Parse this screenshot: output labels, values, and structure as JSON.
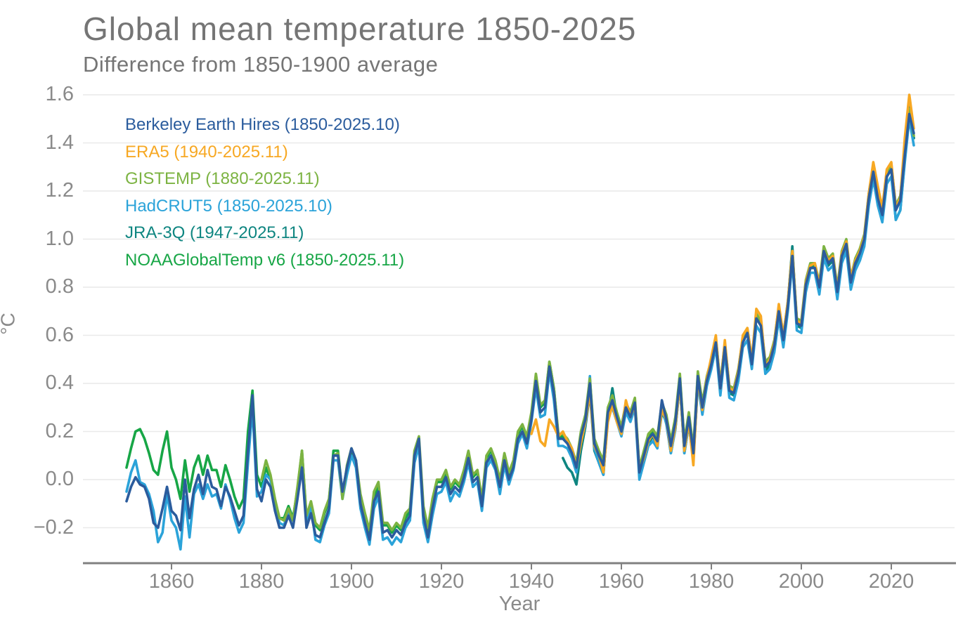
{
  "title": "Global mean temperature 1850-2025",
  "subtitle": "Difference from 1850-1900 average",
  "chart_data": {
    "type": "line",
    "title": "Global mean temperature 1850-2025",
    "subtitle": "Difference from 1850-1900 average",
    "xlabel": "Year",
    "ylabel": "°C",
    "xlim": [
      1850,
      2025
    ],
    "ylim": [
      -0.35,
      1.65
    ],
    "grid": "horizontal",
    "legend_position": "top-left",
    "xticks": [
      1860,
      1880,
      1900,
      1920,
      1940,
      1960,
      1980,
      2000,
      2020
    ],
    "xtick_labels": [
      "1860",
      "1880",
      "1900",
      "1920",
      "1940",
      "1960",
      "1980",
      "2000",
      "2020"
    ],
    "yticks": [
      1.6,
      1.4,
      1.2,
      1.0,
      0.8,
      0.6,
      0.4,
      0.2,
      0.0,
      -0.2
    ],
    "ytick_labels": [
      "1.6",
      "1.4",
      "1.2",
      "1.0",
      "0.8",
      "0.6",
      "0.4",
      "0.2",
      "0.0",
      "−0.2"
    ],
    "draw_order": [
      "noaaglobaltemp",
      "jra-3q",
      "hadcrut5",
      "gistemp",
      "era5",
      "berkeley-earth"
    ],
    "series": [
      {
        "name": "berkeley-earth",
        "label": "Berkeley Earth Hires (1850-2025.10)",
        "color": "#2b5c9d",
        "start_year": 1850,
        "values": [
          -0.09,
          -0.03,
          0.01,
          -0.02,
          -0.03,
          -0.08,
          -0.18,
          -0.2,
          -0.12,
          -0.03,
          -0.13,
          -0.15,
          -0.21,
          0.0,
          -0.16,
          -0.04,
          0.02,
          -0.06,
          0.04,
          -0.03,
          -0.04,
          -0.11,
          -0.03,
          -0.07,
          -0.13,
          -0.19,
          -0.15,
          0.12,
          0.35,
          -0.04,
          -0.09,
          0.0,
          -0.03,
          -0.13,
          -0.2,
          -0.2,
          -0.15,
          -0.2,
          -0.08,
          0.05,
          -0.2,
          -0.14,
          -0.23,
          -0.24,
          -0.18,
          -0.12,
          0.1,
          0.1,
          -0.05,
          0.05,
          0.13,
          0.08,
          -0.1,
          -0.18,
          -0.25,
          -0.09,
          -0.05,
          -0.22,
          -0.21,
          -0.24,
          -0.21,
          -0.23,
          -0.18,
          -0.15,
          0.1,
          0.17,
          -0.15,
          -0.24,
          -0.12,
          -0.03,
          -0.03,
          0.01,
          -0.06,
          -0.03,
          -0.05,
          0.01,
          0.09,
          -0.01,
          0.01,
          -0.11,
          0.07,
          0.1,
          0.05,
          -0.03,
          0.08,
          0.0,
          0.05,
          0.17,
          0.2,
          0.15,
          0.25,
          0.41,
          0.28,
          0.3,
          0.47,
          0.36,
          0.17,
          0.17,
          0.15,
          0.11,
          0.05,
          0.18,
          0.25,
          0.4,
          0.15,
          0.1,
          0.06,
          0.28,
          0.33,
          0.26,
          0.2,
          0.3,
          0.26,
          0.32,
          0.03,
          0.1,
          0.17,
          0.19,
          0.16,
          0.33,
          0.25,
          0.14,
          0.24,
          0.42,
          0.14,
          0.26,
          0.11,
          0.43,
          0.3,
          0.41,
          0.48,
          0.57,
          0.38,
          0.55,
          0.37,
          0.36,
          0.44,
          0.57,
          0.61,
          0.48,
          0.67,
          0.64,
          0.47,
          0.49,
          0.56,
          0.7,
          0.58,
          0.72,
          0.93,
          0.65,
          0.64,
          0.81,
          0.88,
          0.88,
          0.8,
          0.95,
          0.9,
          0.92,
          0.78,
          0.93,
          0.98,
          0.82,
          0.9,
          0.94,
          1.0,
          1.17,
          1.28,
          1.17,
          1.1,
          1.26,
          1.29,
          1.12,
          1.16,
          1.35,
          1.52,
          1.44
        ]
      },
      {
        "name": "era5",
        "label": "ERA5 (1940-2025.11)",
        "color": "#f7a823",
        "start_year": 1940,
        "values": [
          0.19,
          0.25,
          0.16,
          0.14,
          0.25,
          0.22,
          0.18,
          0.2,
          0.16,
          0.13,
          0.05,
          0.15,
          0.24,
          0.36,
          0.14,
          0.1,
          0.03,
          0.24,
          0.31,
          0.24,
          0.19,
          0.33,
          0.26,
          0.31,
          0.04,
          0.09,
          0.16,
          0.19,
          0.14,
          0.29,
          0.25,
          0.12,
          0.22,
          0.4,
          0.12,
          0.24,
          0.06,
          0.42,
          0.29,
          0.42,
          0.51,
          0.6,
          0.38,
          0.58,
          0.38,
          0.37,
          0.45,
          0.6,
          0.63,
          0.5,
          0.71,
          0.68,
          0.47,
          0.5,
          0.57,
          0.73,
          0.6,
          0.74,
          0.95,
          0.66,
          0.65,
          0.82,
          0.89,
          0.9,
          0.81,
          0.95,
          0.91,
          0.93,
          0.79,
          0.94,
          0.99,
          0.84,
          0.91,
          0.95,
          1.01,
          1.19,
          1.32,
          1.22,
          1.13,
          1.29,
          1.32,
          1.13,
          1.17,
          1.42,
          1.6,
          1.46
        ]
      },
      {
        "name": "gistemp",
        "label": "GISTEMP (1880-2025.11)",
        "color": "#7cb342",
        "start_year": 1880,
        "values": [
          0.0,
          0.08,
          0.02,
          -0.08,
          -0.16,
          -0.17,
          -0.12,
          -0.17,
          -0.03,
          0.12,
          -0.15,
          -0.09,
          -0.18,
          -0.2,
          -0.13,
          -0.08,
          0.1,
          0.11,
          -0.08,
          0.06,
          0.13,
          0.08,
          -0.06,
          -0.14,
          -0.21,
          -0.05,
          -0.01,
          -0.18,
          -0.18,
          -0.21,
          -0.18,
          -0.2,
          -0.14,
          -0.12,
          0.12,
          0.18,
          -0.11,
          -0.2,
          -0.08,
          0.0,
          0.0,
          0.04,
          -0.03,
          0.0,
          -0.02,
          0.04,
          0.12,
          0.02,
          0.04,
          -0.08,
          0.1,
          0.13,
          0.08,
          0.0,
          0.11,
          0.03,
          0.08,
          0.2,
          0.23,
          0.18,
          0.28,
          0.44,
          0.31,
          0.33,
          0.49,
          0.38,
          0.19,
          0.19,
          0.17,
          0.13,
          0.07,
          0.2,
          0.27,
          0.42,
          0.17,
          0.12,
          0.08,
          0.3,
          0.35,
          0.28,
          0.22,
          0.32,
          0.28,
          0.34,
          0.05,
          0.12,
          0.19,
          0.21,
          0.18,
          0.32,
          0.27,
          0.16,
          0.26,
          0.44,
          0.16,
          0.28,
          0.13,
          0.45,
          0.32,
          0.43,
          0.5,
          0.59,
          0.4,
          0.57,
          0.39,
          0.38,
          0.46,
          0.59,
          0.63,
          0.5,
          0.69,
          0.66,
          0.49,
          0.51,
          0.58,
          0.72,
          0.6,
          0.74,
          0.95,
          0.67,
          0.66,
          0.83,
          0.9,
          0.9,
          0.82,
          0.97,
          0.92,
          0.94,
          0.8,
          0.95,
          1.0,
          0.84,
          0.92,
          0.96,
          1.02,
          1.19,
          1.3,
          1.19,
          1.12,
          1.28,
          1.31,
          1.14,
          1.18,
          1.37,
          1.54,
          1.43
        ]
      },
      {
        "name": "hadcrut5",
        "label": "HadCRUT5 (1850-2025.10)",
        "color": "#2ba3d9",
        "start_year": 1850,
        "values": [
          -0.05,
          0.03,
          0.08,
          -0.01,
          -0.02,
          -0.06,
          -0.13,
          -0.26,
          -0.22,
          -0.06,
          -0.17,
          -0.2,
          -0.29,
          -0.07,
          -0.24,
          -0.06,
          -0.02,
          -0.08,
          -0.02,
          -0.07,
          -0.06,
          -0.12,
          -0.02,
          -0.08,
          -0.16,
          -0.22,
          -0.18,
          0.07,
          0.3,
          -0.07,
          -0.05,
          0.02,
          0.0,
          -0.1,
          -0.18,
          -0.19,
          -0.13,
          -0.17,
          -0.05,
          0.08,
          -0.17,
          -0.11,
          -0.25,
          -0.26,
          -0.19,
          -0.14,
          0.08,
          0.08,
          -0.08,
          0.02,
          0.1,
          0.05,
          -0.12,
          -0.2,
          -0.27,
          -0.12,
          -0.07,
          -0.25,
          -0.24,
          -0.27,
          -0.24,
          -0.26,
          -0.2,
          -0.17,
          0.07,
          0.14,
          -0.18,
          -0.26,
          -0.15,
          -0.06,
          -0.05,
          -0.01,
          -0.09,
          -0.05,
          -0.07,
          -0.01,
          0.07,
          -0.03,
          -0.01,
          -0.13,
          0.05,
          0.08,
          0.04,
          -0.06,
          0.06,
          -0.02,
          0.04,
          0.15,
          0.19,
          0.13,
          0.24,
          0.38,
          0.26,
          0.27,
          0.45,
          0.33,
          0.14,
          0.14,
          0.13,
          0.09,
          0.03,
          0.16,
          0.23,
          0.43,
          0.13,
          0.07,
          0.02,
          0.26,
          0.3,
          0.24,
          0.18,
          0.28,
          0.24,
          0.3,
          0.0,
          0.07,
          0.14,
          0.16,
          0.13,
          0.3,
          0.23,
          0.11,
          0.21,
          0.4,
          0.11,
          0.23,
          0.08,
          0.4,
          0.27,
          0.39,
          0.46,
          0.55,
          0.35,
          0.53,
          0.34,
          0.33,
          0.41,
          0.55,
          0.58,
          0.46,
          0.64,
          0.61,
          0.44,
          0.46,
          0.53,
          0.67,
          0.55,
          0.7,
          0.91,
          0.62,
          0.61,
          0.78,
          0.86,
          0.86,
          0.77,
          0.92,
          0.87,
          0.89,
          0.75,
          0.9,
          0.95,
          0.79,
          0.87,
          0.91,
          0.97,
          1.14,
          1.25,
          1.14,
          1.07,
          1.23,
          1.26,
          1.08,
          1.12,
          1.32,
          1.5,
          1.39
        ]
      },
      {
        "name": "jra-3q",
        "label": "JRA-3Q (1947-2025.11)",
        "color": "#0e8580",
        "start_year": 1947,
        "values": [
          0.09,
          0.05,
          0.03,
          -0.02,
          0.12,
          0.22,
          0.36,
          0.12,
          0.07,
          0.02,
          0.26,
          0.38,
          0.26,
          0.19,
          0.3,
          0.25,
          0.31,
          0.02,
          0.08,
          0.15,
          0.18,
          0.14,
          0.28,
          0.24,
          0.11,
          0.21,
          0.4,
          0.11,
          0.23,
          0.08,
          0.41,
          0.28,
          0.4,
          0.48,
          0.57,
          0.36,
          0.55,
          0.36,
          0.35,
          0.43,
          0.58,
          0.61,
          0.48,
          0.68,
          0.65,
          0.45,
          0.48,
          0.55,
          0.71,
          0.58,
          0.73,
          0.97,
          0.64,
          0.63,
          0.8,
          0.88,
          0.88,
          0.79,
          0.93,
          0.89,
          0.91,
          0.76,
          0.92,
          0.97,
          0.81,
          0.89,
          0.93,
          0.99,
          1.17,
          1.29,
          1.18,
          1.1,
          1.26,
          1.29,
          1.08,
          1.12,
          1.33,
          1.56,
          1.42
        ]
      },
      {
        "name": "noaaglobaltemp",
        "label": "NOAAGlobalTemp v6 (1850-2025.11)",
        "color": "#17a646",
        "start_year": 1850,
        "values": [
          0.05,
          0.13,
          0.2,
          0.21,
          0.17,
          0.11,
          0.04,
          0.02,
          0.12,
          0.2,
          0.05,
          0.0,
          -0.08,
          0.08,
          -0.05,
          0.05,
          0.1,
          0.02,
          0.1,
          0.04,
          0.04,
          -0.03,
          0.06,
          0.0,
          -0.07,
          -0.12,
          -0.08,
          0.2,
          0.37,
          0.02,
          -0.03,
          0.05,
          0.0,
          -0.09,
          -0.16,
          -0.16,
          -0.11,
          -0.16,
          -0.04,
          0.12,
          -0.16,
          -0.1,
          -0.19,
          -0.21,
          -0.14,
          -0.09,
          0.12,
          0.12,
          -0.06,
          0.05,
          0.12,
          0.07,
          -0.08,
          -0.15,
          -0.22,
          -0.07,
          -0.03,
          -0.19,
          -0.19,
          -0.22,
          -0.19,
          -0.21,
          -0.16,
          -0.13,
          0.1,
          0.16,
          -0.13,
          -0.22,
          -0.1,
          -0.01,
          -0.01,
          0.03,
          -0.04,
          -0.01,
          -0.03,
          0.03,
          0.11,
          0.01,
          0.03,
          -0.09,
          0.09,
          0.12,
          0.07,
          -0.01,
          0.1,
          0.02,
          0.07,
          0.19,
          0.22,
          0.17,
          0.27,
          0.43,
          0.3,
          0.32,
          0.49,
          0.38,
          0.18,
          0.18,
          0.16,
          0.12,
          0.06,
          0.19,
          0.26,
          0.41,
          0.16,
          0.11,
          0.07,
          0.29,
          0.34,
          0.27,
          0.21,
          0.31,
          0.27,
          0.33,
          0.04,
          0.11,
          0.18,
          0.2,
          0.17,
          0.31,
          0.26,
          0.15,
          0.25,
          0.43,
          0.15,
          0.27,
          0.12,
          0.44,
          0.31,
          0.42,
          0.49,
          0.58,
          0.39,
          0.56,
          0.38,
          0.37,
          0.45,
          0.58,
          0.62,
          0.49,
          0.68,
          0.65,
          0.48,
          0.5,
          0.57,
          0.71,
          0.59,
          0.73,
          0.94,
          0.66,
          0.65,
          0.82,
          0.89,
          0.89,
          0.81,
          0.96,
          0.91,
          0.93,
          0.79,
          0.94,
          0.99,
          0.83,
          0.91,
          0.95,
          1.01,
          1.18,
          1.29,
          1.18,
          1.11,
          1.27,
          1.3,
          1.13,
          1.17,
          1.36,
          1.54,
          1.42
        ]
      }
    ]
  },
  "style": {
    "grid_color": "#e9e9e9",
    "axis_color": "#808080",
    "tick_label_color": "#8a8a8a",
    "title_color": "#757575"
  }
}
